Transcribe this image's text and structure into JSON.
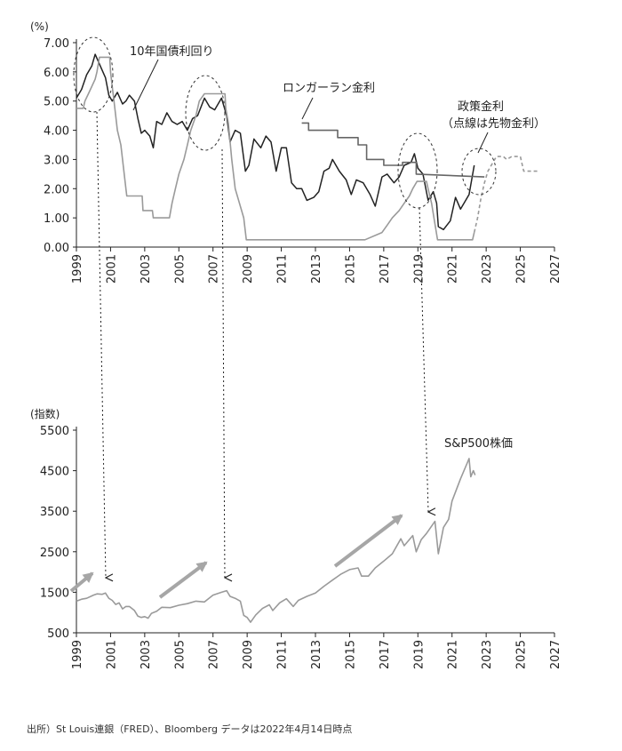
{
  "source_note": "出所）St Louis連銀（FRED）、Bloomberg データは2022年4月14日時点",
  "colors": {
    "dark": "#222222",
    "mid": "#666666",
    "light": "#9a9a9a",
    "arrow": "#a6a6a6"
  },
  "chart_data": [
    {
      "type": "line",
      "ylabel": "(%)",
      "xlim": [
        1999,
        2027
      ],
      "ylim": [
        0,
        7
      ],
      "x_ticks": [
        "1999",
        "2001",
        "2003",
        "2005",
        "2007",
        "2009",
        "2011",
        "2013",
        "2015",
        "2017",
        "2019",
        "2021",
        "2023",
        "2025",
        "2027"
      ],
      "y_ticks": [
        "0.00",
        "1.00",
        "2.00",
        "3.00",
        "4.00",
        "5.00",
        "6.00",
        "7.00"
      ],
      "annotations": [
        "10年国債利回り",
        "ロンガーラン金利",
        "政策金利",
        "（点線は先物金利）"
      ],
      "series": [
        {
          "name": "10年国債利回り",
          "color": "#222222",
          "points": [
            [
              1999.0,
              5.1
            ],
            [
              1999.3,
              5.4
            ],
            [
              1999.6,
              5.9
            ],
            [
              1999.9,
              6.2
            ],
            [
              2000.1,
              6.6
            ],
            [
              2000.4,
              6.2
            ],
            [
              2000.7,
              5.8
            ],
            [
              2000.9,
              5.2
            ],
            [
              2001.1,
              5.0
            ],
            [
              2001.4,
              5.3
            ],
            [
              2001.7,
              4.9
            ],
            [
              2001.9,
              5.0
            ],
            [
              2002.1,
              5.2
            ],
            [
              2002.4,
              5.0
            ],
            [
              2002.6,
              4.4
            ],
            [
              2002.8,
              3.9
            ],
            [
              2003.0,
              4.0
            ],
            [
              2003.3,
              3.8
            ],
            [
              2003.5,
              3.4
            ],
            [
              2003.7,
              4.3
            ],
            [
              2004.0,
              4.2
            ],
            [
              2004.3,
              4.6
            ],
            [
              2004.6,
              4.3
            ],
            [
              2004.9,
              4.2
            ],
            [
              2005.2,
              4.3
            ],
            [
              2005.5,
              4.0
            ],
            [
              2005.8,
              4.4
            ],
            [
              2006.1,
              4.5
            ],
            [
              2006.5,
              5.1
            ],
            [
              2006.8,
              4.8
            ],
            [
              2007.1,
              4.7
            ],
            [
              2007.5,
              5.1
            ],
            [
              2007.8,
              4.5
            ],
            [
              2008.0,
              3.6
            ],
            [
              2008.3,
              4.0
            ],
            [
              2008.6,
              3.9
            ],
            [
              2008.9,
              2.6
            ],
            [
              2009.1,
              2.8
            ],
            [
              2009.4,
              3.7
            ],
            [
              2009.8,
              3.4
            ],
            [
              2010.1,
              3.8
            ],
            [
              2010.4,
              3.6
            ],
            [
              2010.7,
              2.6
            ],
            [
              2011.0,
              3.4
            ],
            [
              2011.3,
              3.4
            ],
            [
              2011.6,
              2.2
            ],
            [
              2011.9,
              2.0
            ],
            [
              2012.2,
              2.0
            ],
            [
              2012.5,
              1.6
            ],
            [
              2012.9,
              1.7
            ],
            [
              2013.2,
              1.9
            ],
            [
              2013.5,
              2.6
            ],
            [
              2013.8,
              2.7
            ],
            [
              2014.0,
              3.0
            ],
            [
              2014.4,
              2.6
            ],
            [
              2014.8,
              2.3
            ],
            [
              2015.1,
              1.8
            ],
            [
              2015.4,
              2.3
            ],
            [
              2015.8,
              2.2
            ],
            [
              2016.2,
              1.8
            ],
            [
              2016.5,
              1.4
            ],
            [
              2016.9,
              2.4
            ],
            [
              2017.2,
              2.5
            ],
            [
              2017.6,
              2.2
            ],
            [
              2017.9,
              2.4
            ],
            [
              2018.2,
              2.8
            ],
            [
              2018.6,
              2.9
            ],
            [
              2018.8,
              3.2
            ],
            [
              2019.0,
              2.7
            ],
            [
              2019.3,
              2.5
            ],
            [
              2019.6,
              1.6
            ],
            [
              2019.9,
              1.9
            ],
            [
              2020.1,
              1.5
            ],
            [
              2020.2,
              0.7
            ],
            [
              2020.5,
              0.6
            ],
            [
              2020.9,
              0.9
            ],
            [
              2021.2,
              1.7
            ],
            [
              2021.5,
              1.3
            ],
            [
              2021.8,
              1.6
            ],
            [
              2022.0,
              1.8
            ],
            [
              2022.3,
              2.8
            ]
          ]
        },
        {
          "name": "政策金利",
          "color": "#9a9a9a",
          "points": [
            [
              1999.0,
              4.75
            ],
            [
              1999.4,
              4.75
            ],
            [
              1999.5,
              5.0
            ],
            [
              1999.7,
              5.25
            ],
            [
              1999.9,
              5.5
            ],
            [
              2000.1,
              5.75
            ],
            [
              2000.2,
              6.0
            ],
            [
              2000.35,
              6.5
            ],
            [
              2000.95,
              6.5
            ],
            [
              2001.0,
              6.0
            ],
            [
              2001.1,
              5.5
            ],
            [
              2001.2,
              5.0
            ],
            [
              2001.3,
              4.5
            ],
            [
              2001.4,
              4.0
            ],
            [
              2001.6,
              3.5
            ],
            [
              2001.7,
              3.0
            ],
            [
              2001.8,
              2.5
            ],
            [
              2001.9,
              2.0
            ],
            [
              2001.95,
              1.75
            ],
            [
              2002.85,
              1.75
            ],
            [
              2002.9,
              1.25
            ],
            [
              2003.45,
              1.25
            ],
            [
              2003.5,
              1.0
            ],
            [
              2004.45,
              1.0
            ],
            [
              2004.6,
              1.5
            ],
            [
              2004.8,
              2.0
            ],
            [
              2005.0,
              2.5
            ],
            [
              2005.3,
              3.0
            ],
            [
              2005.5,
              3.5
            ],
            [
              2005.7,
              4.0
            ],
            [
              2006.0,
              4.5
            ],
            [
              2006.2,
              5.0
            ],
            [
              2006.5,
              5.25
            ],
            [
              2007.7,
              5.25
            ],
            [
              2007.75,
              4.75
            ],
            [
              2007.9,
              4.25
            ],
            [
              2008.1,
              3.0
            ],
            [
              2008.3,
              2.0
            ],
            [
              2008.8,
              1.0
            ],
            [
              2008.95,
              0.25
            ],
            [
              2015.9,
              0.25
            ],
            [
              2016.9,
              0.5
            ],
            [
              2017.2,
              0.75
            ],
            [
              2017.5,
              1.0
            ],
            [
              2017.9,
              1.25
            ],
            [
              2018.2,
              1.5
            ],
            [
              2018.5,
              1.75
            ],
            [
              2018.7,
              2.0
            ],
            [
              2018.95,
              2.25
            ],
            [
              2019.5,
              2.25
            ],
            [
              2019.6,
              2.0
            ],
            [
              2019.7,
              1.75
            ],
            [
              2019.8,
              1.5
            ],
            [
              2020.15,
              0.25
            ],
            [
              2022.2,
              0.25
            ],
            [
              2022.3,
              0.5
            ]
          ]
        },
        {
          "name": "政策金利（先物）",
          "color": "#9a9a9a",
          "dashed": true,
          "points": [
            [
              2022.3,
              0.5
            ],
            [
              2022.5,
              1.0
            ],
            [
              2022.7,
              1.7
            ],
            [
              2022.9,
              2.2
            ],
            [
              2023.1,
              2.6
            ],
            [
              2023.4,
              2.9
            ],
            [
              2023.6,
              3.1
            ],
            [
              2024.0,
              3.1
            ],
            [
              2024.2,
              3.0
            ],
            [
              2024.5,
              3.1
            ],
            [
              2025.0,
              3.1
            ],
            [
              2025.2,
              2.6
            ],
            [
              2026.0,
              2.6
            ]
          ]
        },
        {
          "name": "ロンガーラン金利",
          "color": "#666666",
          "points": [
            [
              2012.2,
              4.25
            ],
            [
              2012.6,
              4.25
            ],
            [
              2012.6,
              4.0
            ],
            [
              2014.3,
              4.0
            ],
            [
              2014.3,
              3.75
            ],
            [
              2015.5,
              3.75
            ],
            [
              2015.5,
              3.5
            ],
            [
              2016.0,
              3.5
            ],
            [
              2016.0,
              3.0
            ],
            [
              2017.0,
              3.0
            ],
            [
              2017.0,
              2.8
            ],
            [
              2018.1,
              2.8
            ],
            [
              2018.1,
              2.9
            ],
            [
              2018.9,
              2.9
            ],
            [
              2018.9,
              2.5
            ],
            [
              2022.9,
              2.4
            ]
          ]
        }
      ]
    },
    {
      "type": "line",
      "ylabel": "(指数)",
      "xlim": [
        1999,
        2027
      ],
      "ylim": [
        500,
        5500
      ],
      "x_ticks": [
        "1999",
        "2001",
        "2003",
        "2005",
        "2007",
        "2009",
        "2011",
        "2013",
        "2015",
        "2017",
        "2019",
        "2021",
        "2023",
        "2025",
        "2027"
      ],
      "y_ticks": [
        "500",
        "1500",
        "2500",
        "3500",
        "4500",
        "5500"
      ],
      "annotations": [
        "S&P500株価"
      ],
      "series": [
        {
          "name": "S&P500株価",
          "color": "#9a9a9a",
          "points": [
            [
              1999.0,
              1280
            ],
            [
              1999.3,
              1330
            ],
            [
              1999.6,
              1350
            ],
            [
              2000.0,
              1430
            ],
            [
              2000.2,
              1460
            ],
            [
              2000.5,
              1450
            ],
            [
              2000.7,
              1480
            ],
            [
              2000.9,
              1350
            ],
            [
              2001.1,
              1300
            ],
            [
              2001.3,
              1200
            ],
            [
              2001.5,
              1240
            ],
            [
              2001.7,
              1090
            ],
            [
              2001.9,
              1150
            ],
            [
              2002.1,
              1150
            ],
            [
              2002.4,
              1050
            ],
            [
              2002.6,
              910
            ],
            [
              2002.8,
              880
            ],
            [
              2003.0,
              900
            ],
            [
              2003.2,
              860
            ],
            [
              2003.4,
              980
            ],
            [
              2003.7,
              1030
            ],
            [
              2004.0,
              1130
            ],
            [
              2004.5,
              1120
            ],
            [
              2005.0,
              1180
            ],
            [
              2005.5,
              1220
            ],
            [
              2006.0,
              1280
            ],
            [
              2006.5,
              1260
            ],
            [
              2007.0,
              1430
            ],
            [
              2007.5,
              1500
            ],
            [
              2007.8,
              1540
            ],
            [
              2008.0,
              1400
            ],
            [
              2008.3,
              1350
            ],
            [
              2008.6,
              1280
            ],
            [
              2008.8,
              930
            ],
            [
              2009.0,
              880
            ],
            [
              2009.2,
              760
            ],
            [
              2009.5,
              940
            ],
            [
              2009.9,
              1100
            ],
            [
              2010.3,
              1190
            ],
            [
              2010.5,
              1050
            ],
            [
              2010.9,
              1240
            ],
            [
              2011.3,
              1340
            ],
            [
              2011.7,
              1150
            ],
            [
              2012.0,
              1300
            ],
            [
              2012.5,
              1400
            ],
            [
              2013.0,
              1480
            ],
            [
              2013.5,
              1650
            ],
            [
              2014.0,
              1800
            ],
            [
              2014.5,
              1950
            ],
            [
              2015.0,
              2060
            ],
            [
              2015.5,
              2100
            ],
            [
              2015.7,
              1900
            ],
            [
              2016.1,
              1900
            ],
            [
              2016.5,
              2100
            ],
            [
              2017.0,
              2270
            ],
            [
              2017.5,
              2450
            ],
            [
              2018.0,
              2820
            ],
            [
              2018.2,
              2650
            ],
            [
              2018.7,
              2900
            ],
            [
              2018.9,
              2500
            ],
            [
              2019.2,
              2800
            ],
            [
              2019.5,
              2950
            ],
            [
              2020.0,
              3250
            ],
            [
              2020.2,
              2450
            ],
            [
              2020.5,
              3100
            ],
            [
              2020.8,
              3300
            ],
            [
              2021.0,
              3750
            ],
            [
              2021.5,
              4300
            ],
            [
              2021.9,
              4700
            ],
            [
              2022.0,
              4800
            ],
            [
              2022.1,
              4350
            ],
            [
              2022.25,
              4500
            ],
            [
              2022.35,
              4390
            ]
          ]
        }
      ]
    }
  ]
}
